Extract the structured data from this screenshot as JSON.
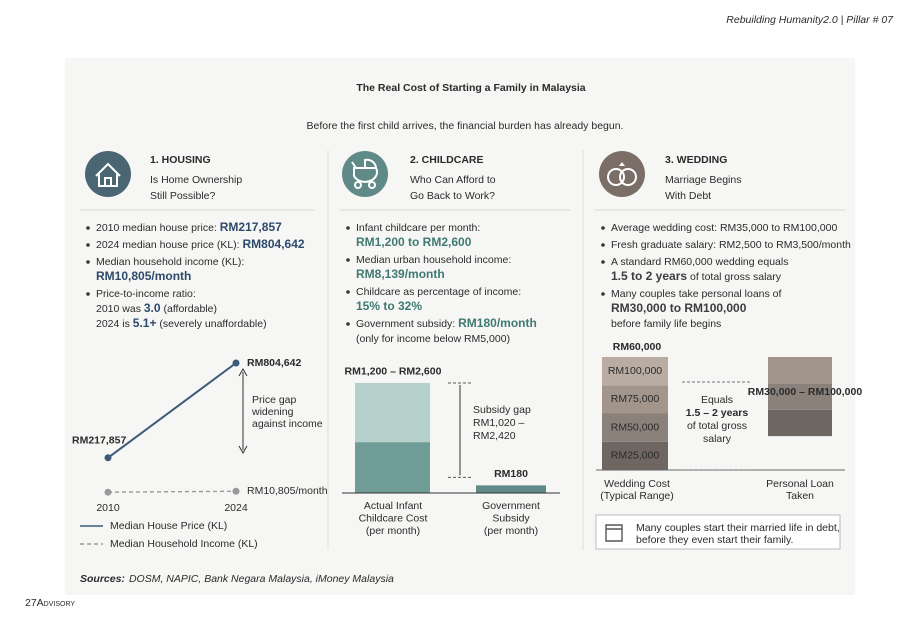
{
  "header": {
    "top_tag": "Rebuilding Humanity2.0 | Pillar # 07",
    "title": "The Real Cost of Starting a Family in Malaysia",
    "subtitle": "Before the first child arrives, the financial burden has already begun."
  },
  "sections": [
    {
      "heading": "1. HOUSING",
      "subheading": [
        "Is Home Ownership",
        "Still Possible?"
      ],
      "accent": "#2d4a6b",
      "icon_color": "#4b6673",
      "bullets": [
        [
          [
            "2010 median house price: ",
            {
              "text": "RM217,857",
              "bold": true
            }
          ]
        ],
        [
          [
            "2024 median house price (KL): ",
            {
              "text": "RM804,642",
              "bold": true
            }
          ]
        ],
        [
          [
            "Median household income (KL):"
          ],
          [
            {
              "text": "RM10,805/month",
              "bold": true
            }
          ]
        ],
        [
          [
            "Price-to-income ratio:"
          ],
          [
            "2010 was ",
            {
              "text": "3.0",
              "bold": true
            },
            " (affordable)"
          ],
          [
            "2024 is ",
            {
              "text": "5.1+",
              "bold": true
            },
            " (severely unaffordable)"
          ]
        ]
      ]
    },
    {
      "heading": "2. CHILDCARE",
      "subheading": [
        "Who Can Afford to",
        "Go Back to Work?"
      ],
      "accent": "#3f7a72",
      "icon_color": "#5f8a87",
      "bullets": [
        [
          [
            "Infant childcare per month:"
          ],
          [
            {
              "text": "RM1,200 to RM2,600",
              "bold": true
            }
          ]
        ],
        [
          [
            "Median urban household income:"
          ],
          [
            {
              "text": "RM8,139/month",
              "bold": true
            }
          ]
        ],
        [
          [
            "Childcare as percentage of income:"
          ],
          [
            {
              "text": "15% to 32%",
              "bold": true
            }
          ]
        ],
        [
          [
            "Government subsidy: ",
            {
              "text": "RM180/month",
              "bold": true
            }
          ],
          [
            "(only for income below RM5,000)"
          ]
        ]
      ]
    },
    {
      "heading": "3. WEDDING",
      "subheading": [
        "Marriage Begins",
        "With Debt"
      ],
      "accent": "#3d3d3d",
      "icon_color": "#7a6e67",
      "bullets": [
        [
          [
            "Average wedding cost: RM35,000 to RM100,000"
          ]
        ],
        [
          [
            "Fresh graduate salary: RM2,500 to RM3,500/month"
          ]
        ],
        [
          [
            "A standard RM60,000 wedding equals"
          ],
          [
            {
              "text": "1.5 to 2 years",
              "bold": true
            },
            " of total gross salary"
          ]
        ],
        [
          [
            "Many couples take personal loans of"
          ],
          [
            {
              "text": "RM30,000 to RM100,000",
              "bold": true
            }
          ],
          [
            "before family life begins"
          ]
        ]
      ]
    }
  ],
  "housing_chart": {
    "type": "line",
    "x": [
      "2010",
      "2024"
    ],
    "ylim": [
      0,
      900000
    ],
    "series": [
      {
        "name": "Median House Price (KL)",
        "color": "#3d5a7a",
        "dashed": false,
        "values": [
          217857,
          804642
        ],
        "value_labels": [
          "RM217,857",
          "RM804,642"
        ]
      },
      {
        "name": "Median Household Income (KL)",
        "color": "#9a9a9a",
        "dashed": true,
        "values": [
          5000,
          10805
        ],
        "value_labels": [
          null,
          "RM10,805/month"
        ]
      }
    ],
    "annotation": [
      "Price gap",
      "widening",
      "against income"
    ]
  },
  "childcare_chart": {
    "type": "bar",
    "ylim": [
      0,
      2800
    ],
    "bars": [
      {
        "label": [
          "Actual Infant",
          "Childcare Cost",
          "(per month)"
        ],
        "low": 1200,
        "high": 2600,
        "value_label": "RM1,200 – RM2,600",
        "color": "#6f9c97",
        "light_color": "#b5cfcb"
      },
      {
        "label": [
          "Government",
          "Subsidy",
          "(per month)"
        ],
        "value": 180,
        "value_label": "RM180",
        "color": "#5f8a87"
      }
    ],
    "annotation": [
      "Subsidy gap",
      "RM1,020 –",
      "RM2,420"
    ]
  },
  "wedding_chart": {
    "type": "bar",
    "ylim": [
      0,
      100000
    ],
    "yticks": [
      {
        "value": 25000,
        "label": "RM25,000"
      },
      {
        "value": 50000,
        "label": "RM50,000"
      },
      {
        "value": 75000,
        "label": "RM75,000"
      },
      {
        "value": 100000,
        "label": "RM100,000"
      }
    ],
    "top_label": "RM60,000",
    "colors": [
      "#6e6660",
      "#8a817a",
      "#a1958c",
      "#b9ada3"
    ],
    "bars": [
      {
        "label": [
          "Wedding Cost",
          "(Typical Range)"
        ]
      },
      {
        "label": [
          "Personal Loan",
          "Taken"
        ],
        "low": 30000,
        "high": 100000,
        "value_label": "RM30,000 – RM100,000"
      }
    ],
    "annotation": [
      "Equals",
      "1.5 – 2 years",
      "of total gross",
      "salary"
    ]
  },
  "note": [
    "Many couples start their married life in debt,",
    "before they even start their family."
  ],
  "sources": {
    "label": "Sources:",
    "text": "DOSM, NAPIC, Bank Negara Malaysia, iMoney Malaysia"
  },
  "logo": "27Advisory"
}
